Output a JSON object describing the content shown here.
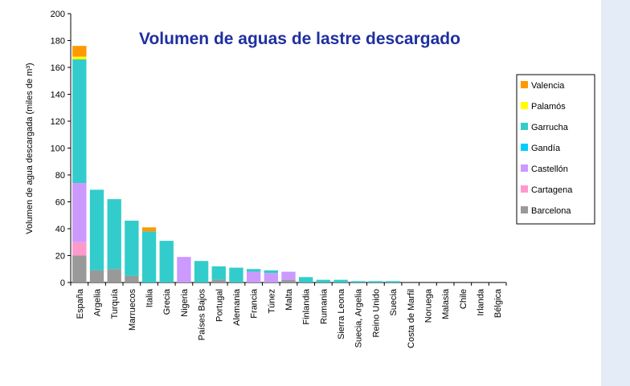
{
  "chart_data": {
    "type": "stacked_bar",
    "title": "Volumen de aguas de lastre descargado",
    "y_label": "Volumen de agua descargada (miles de m³)",
    "categories": [
      "España",
      "Argelia",
      "Turquía",
      "Marruecos",
      "Italia",
      "Grecia",
      "Nigeria",
      "Países Bajos",
      "Portugal",
      "Alemania",
      "Francia",
      "Túnez",
      "Malta",
      "Finlandia",
      "Rumania",
      "Sierra Leona",
      "Suecia, Argelia",
      "Reino Unido",
      "Suecia",
      "Costa de Marfil",
      "Noruega",
      "Malasia",
      "Chile",
      "Irlanda",
      "Bélgica"
    ],
    "series": [
      {
        "name": "Barcelona",
        "color": "#999999",
        "values": [
          20,
          9,
          10,
          5,
          0,
          0,
          0,
          0,
          2,
          0,
          0,
          0,
          2,
          0,
          0,
          0,
          0,
          0,
          0,
          0,
          0,
          0,
          0,
          0,
          0
        ]
      },
      {
        "name": "Cartagena",
        "color": "#ff99cc",
        "values": [
          10,
          0,
          0,
          0,
          0,
          0,
          0,
          0,
          0,
          0,
          0,
          0,
          0,
          0,
          0,
          0,
          0,
          0,
          0,
          0,
          0,
          0,
          0,
          0,
          0
        ]
      },
      {
        "name": "Castellón",
        "color": "#cc99ff",
        "values": [
          44,
          0,
          0,
          0,
          0,
          0,
          19,
          0,
          0,
          0,
          8,
          7,
          6,
          0,
          0,
          0,
          0,
          0,
          0,
          0,
          0,
          0,
          0,
          0,
          0
        ]
      },
      {
        "name": "Gandía",
        "color": "#00ccff",
        "values": [
          0,
          0,
          0,
          0,
          0,
          0,
          0,
          0,
          0,
          0,
          0,
          0,
          0,
          0,
          0,
          0,
          0,
          0,
          0,
          0,
          0,
          0,
          0,
          0,
          0
        ]
      },
      {
        "name": "Garrucha",
        "color": "#33cccc",
        "values": [
          92,
          60,
          52,
          41,
          38,
          31,
          0,
          16,
          10,
          11,
          2,
          2,
          0,
          4,
          2,
          2,
          1,
          1,
          1,
          0,
          0,
          0,
          0,
          0,
          0
        ]
      },
      {
        "name": "Palamós",
        "color": "#ffff00",
        "values": [
          2,
          0,
          0,
          0,
          0,
          0,
          0,
          0,
          0,
          0,
          0,
          0,
          0,
          0,
          0,
          0,
          0,
          0,
          0,
          0,
          0,
          0,
          0,
          0,
          0
        ]
      },
      {
        "name": "Valencia",
        "color": "#ff9900",
        "values": [
          8,
          0,
          0,
          0,
          3,
          0,
          0,
          0,
          0,
          0,
          0,
          0,
          0,
          0,
          0,
          0,
          0,
          0,
          0,
          0,
          0,
          0,
          0,
          0,
          0
        ]
      }
    ],
    "ylim": [
      0,
      200
    ],
    "yticks": [
      0,
      20,
      40,
      60,
      80,
      100,
      120,
      140,
      160,
      180,
      200
    ],
    "legend": "right"
  }
}
